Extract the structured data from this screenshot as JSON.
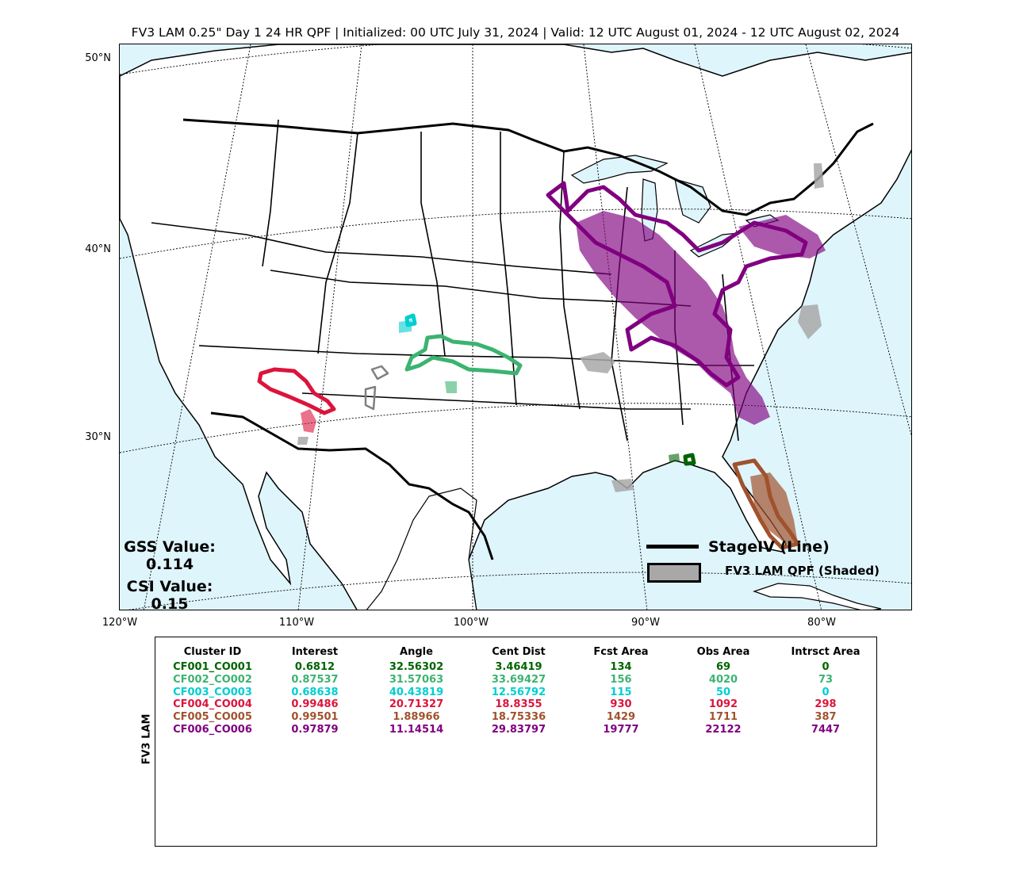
{
  "title": "FV3 LAM 0.25\" Day 1 24 HR QPF | Initialized: 00 UTC July 31, 2024 | Valid: 12 UTC August 01, 2024 - 12 UTC August 02, 2024",
  "map": {
    "lat_labels": [
      "50°N",
      "40°N",
      "30°N"
    ],
    "lon_labels": [
      "120°W",
      "110°W",
      "100°W",
      "90°W",
      "80°W"
    ],
    "colors": {
      "ocean": "#dff5fc",
      "land": "#ffffff",
      "border": "#000000"
    }
  },
  "scores": {
    "gss_label": "GSS Value:",
    "gss_value": "0.114",
    "csi_label": "CSI Value:",
    "csi_value": "0.15"
  },
  "legend": {
    "line_label": "StageIV (Line)",
    "shade_label": "FV3 LAM QPF (Shaded)"
  },
  "table": {
    "side_label": "FV3 LAM",
    "headers": [
      "Cluster ID",
      "Interest",
      "Angle",
      "Cent Dist",
      "Fcst Area",
      "Obs Area",
      "Intrsct Area"
    ],
    "rows": [
      {
        "color": "#006400",
        "cells": [
          "CF001_CO001",
          "0.6812",
          "32.56302",
          "3.46419",
          "134",
          "69",
          "0"
        ]
      },
      {
        "color": "#3cb371",
        "cells": [
          "CF002_CO002",
          "0.87537",
          "31.57063",
          "33.69427",
          "156",
          "4020",
          "73"
        ]
      },
      {
        "color": "#00ced1",
        "cells": [
          "CF003_CO003",
          "0.68638",
          "40.43819",
          "12.56792",
          "115",
          "50",
          "0"
        ]
      },
      {
        "color": "#dc143c",
        "cells": [
          "CF004_CO004",
          "0.99486",
          "20.71327",
          "18.8355",
          "930",
          "1092",
          "298"
        ]
      },
      {
        "color": "#a0522d",
        "cells": [
          "CF005_CO005",
          "0.99501",
          "1.88966",
          "18.75336",
          "1429",
          "1711",
          "387"
        ]
      },
      {
        "color": "#800080",
        "cells": [
          "CF006_CO006",
          "0.97879",
          "11.14514",
          "29.83797",
          "19777",
          "22122",
          "7447"
        ]
      }
    ]
  }
}
